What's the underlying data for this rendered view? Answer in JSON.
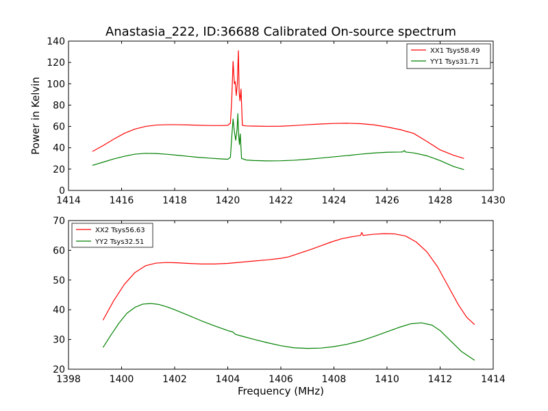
{
  "title": "Anastasia_222, ID:36688 Calibrated On-source spectrum",
  "chart_data": [
    {
      "type": "line",
      "name": "top",
      "title": "Anastasia_222, ID:36688 Calibrated On-source spectrum",
      "xlabel": "",
      "ylabel": "Power in Kelvin",
      "xlim": [
        1414,
        1430
      ],
      "ylim": [
        0,
        140
      ],
      "xticks": [
        1414,
        1416,
        1418,
        1420,
        1422,
        1424,
        1426,
        1428,
        1430
      ],
      "yticks": [
        0,
        20,
        40,
        60,
        80,
        100,
        120,
        140
      ],
      "grid": false,
      "legend_position": "top-right",
      "series": [
        {
          "name": "XX1 Tsys58.49",
          "color": "#ff0000",
          "points": [
            [
              1414.9,
              36.5
            ],
            [
              1415.3,
              42
            ],
            [
              1415.7,
              48
            ],
            [
              1416.1,
              53.5
            ],
            [
              1416.5,
              57.5
            ],
            [
              1416.9,
              60
            ],
            [
              1417.3,
              61.3
            ],
            [
              1417.7,
              61.6
            ],
            [
              1418.1,
              61.6
            ],
            [
              1418.5,
              61.4
            ],
            [
              1418.9,
              61.1
            ],
            [
              1419.3,
              60.9
            ],
            [
              1419.7,
              60.8
            ],
            [
              1420.0,
              61
            ],
            [
              1420.1,
              63
            ],
            [
              1420.15,
              85
            ],
            [
              1420.2,
              121
            ],
            [
              1420.25,
              100
            ],
            [
              1420.28,
              102
            ],
            [
              1420.32,
              89
            ],
            [
              1420.36,
              100
            ],
            [
              1420.4,
              131
            ],
            [
              1420.43,
              92
            ],
            [
              1420.46,
              84
            ],
            [
              1420.5,
              95
            ],
            [
              1420.55,
              61
            ],
            [
              1420.7,
              60.5
            ],
            [
              1421,
              60.3
            ],
            [
              1421.5,
              60.1
            ],
            [
              1422,
              60.2
            ],
            [
              1422.5,
              60.8
            ],
            [
              1423,
              61.6
            ],
            [
              1423.5,
              62.3
            ],
            [
              1424,
              62.8
            ],
            [
              1424.5,
              63
            ],
            [
              1425,
              62.6
            ],
            [
              1425.5,
              61.5
            ],
            [
              1426,
              59.5
            ],
            [
              1426.5,
              57
            ],
            [
              1427,
              53.5
            ],
            [
              1427.5,
              46
            ],
            [
              1428,
              38
            ],
            [
              1428.5,
              33
            ],
            [
              1428.9,
              30
            ]
          ]
        },
        {
          "name": "YY1 Tsys31.71",
          "color": "#008000",
          "points": [
            [
              1414.9,
              23.5
            ],
            [
              1415.3,
              26.5
            ],
            [
              1415.7,
              29.5
            ],
            [
              1416.1,
              32
            ],
            [
              1416.5,
              34
            ],
            [
              1416.9,
              34.8
            ],
            [
              1417.3,
              34.6
            ],
            [
              1417.7,
              33.9
            ],
            [
              1418.1,
              33
            ],
            [
              1418.5,
              32
            ],
            [
              1418.9,
              31
            ],
            [
              1419.3,
              30.3
            ],
            [
              1419.7,
              29.6
            ],
            [
              1420.0,
              29.2
            ],
            [
              1420.1,
              31
            ],
            [
              1420.15,
              50
            ],
            [
              1420.2,
              67
            ],
            [
              1420.25,
              55
            ],
            [
              1420.3,
              47
            ],
            [
              1420.35,
              57
            ],
            [
              1420.38,
              72
            ],
            [
              1420.41,
              52
            ],
            [
              1420.44,
              43
            ],
            [
              1420.47,
              53
            ],
            [
              1420.52,
              30
            ],
            [
              1420.7,
              28.5
            ],
            [
              1421,
              28
            ],
            [
              1421.5,
              27.7
            ],
            [
              1422,
              27.8
            ],
            [
              1422.5,
              28.3
            ],
            [
              1423,
              29.2
            ],
            [
              1423.5,
              30.3
            ],
            [
              1424,
              31.5
            ],
            [
              1424.5,
              32.7
            ],
            [
              1425,
              34
            ],
            [
              1425.5,
              35.1
            ],
            [
              1426,
              35.8
            ],
            [
              1426.5,
              36
            ],
            [
              1426.6,
              36.2
            ],
            [
              1426.65,
              37.5
            ],
            [
              1426.7,
              36
            ],
            [
              1427,
              35.2
            ],
            [
              1427.5,
              32.5
            ],
            [
              1428,
              28
            ],
            [
              1428.5,
              22.5
            ],
            [
              1428.9,
              19.5
            ]
          ]
        }
      ]
    },
    {
      "type": "line",
      "name": "bottom",
      "title": "",
      "xlabel": "Frequency (MHz)",
      "ylabel": "",
      "xlim": [
        1398,
        1414
      ],
      "ylim": [
        20,
        70
      ],
      "xticks": [
        1398,
        1400,
        1402,
        1404,
        1406,
        1408,
        1410,
        1412,
        1414
      ],
      "yticks": [
        20,
        30,
        40,
        50,
        60,
        70
      ],
      "grid": false,
      "legend_position": "top-left",
      "series": [
        {
          "name": "XX2 Tsys56.63",
          "color": "#ff0000",
          "points": [
            [
              1399.3,
              36.5
            ],
            [
              1399.7,
              43
            ],
            [
              1400.1,
              48.5
            ],
            [
              1400.5,
              52.5
            ],
            [
              1400.9,
              54.8
            ],
            [
              1401.3,
              55.7
            ],
            [
              1401.7,
              55.9
            ],
            [
              1402.1,
              55.8
            ],
            [
              1402.5,
              55.6
            ],
            [
              1403,
              55.4
            ],
            [
              1403.5,
              55.4
            ],
            [
              1404,
              55.6
            ],
            [
              1404.5,
              56
            ],
            [
              1405,
              56.4
            ],
            [
              1405.5,
              56.8
            ],
            [
              1406,
              57.3
            ],
            [
              1406.3,
              57.8
            ],
            [
              1406.7,
              59
            ],
            [
              1407.1,
              60.2
            ],
            [
              1407.5,
              61.5
            ],
            [
              1407.9,
              62.8
            ],
            [
              1408.3,
              63.9
            ],
            [
              1408.7,
              64.6
            ],
            [
              1409.0,
              65
            ],
            [
              1409.05,
              66
            ],
            [
              1409.1,
              65
            ],
            [
              1409.5,
              65.4
            ],
            [
              1409.9,
              65.6
            ],
            [
              1410.3,
              65.5
            ],
            [
              1410.7,
              64.8
            ],
            [
              1411.1,
              62.8
            ],
            [
              1411.5,
              59.5
            ],
            [
              1411.9,
              54.5
            ],
            [
              1412.3,
              48
            ],
            [
              1412.7,
              41.5
            ],
            [
              1413.0,
              37.5
            ],
            [
              1413.3,
              35
            ]
          ]
        },
        {
          "name": "YY2 Tsys32.51",
          "color": "#008000",
          "points": [
            [
              1399.3,
              27.3
            ],
            [
              1399.6,
              31.5
            ],
            [
              1399.9,
              35.5
            ],
            [
              1400.2,
              38.8
            ],
            [
              1400.5,
              40.8
            ],
            [
              1400.8,
              41.9
            ],
            [
              1401.1,
              42.1
            ],
            [
              1401.4,
              41.8
            ],
            [
              1401.7,
              41
            ],
            [
              1402,
              40
            ],
            [
              1402.5,
              38.2
            ],
            [
              1403,
              36.3
            ],
            [
              1403.5,
              34.6
            ],
            [
              1404,
              33
            ],
            [
              1404.2,
              32.5
            ],
            [
              1404.25,
              32
            ],
            [
              1404.3,
              31.7
            ],
            [
              1404.5,
              31.2
            ],
            [
              1405,
              30
            ],
            [
              1405.5,
              28.9
            ],
            [
              1406,
              27.9
            ],
            [
              1406.5,
              27.2
            ],
            [
              1407,
              27
            ],
            [
              1407.5,
              27.1
            ],
            [
              1408,
              27.6
            ],
            [
              1408.5,
              28.4
            ],
            [
              1409,
              29.5
            ],
            [
              1409.5,
              31
            ],
            [
              1410,
              32.6
            ],
            [
              1410.5,
              34.2
            ],
            [
              1410.9,
              35.3
            ],
            [
              1411.3,
              35.6
            ],
            [
              1411.7,
              34.8
            ],
            [
              1412,
              33
            ],
            [
              1412.4,
              29.5
            ],
            [
              1412.8,
              26
            ],
            [
              1413.3,
              23
            ]
          ]
        }
      ]
    }
  ]
}
